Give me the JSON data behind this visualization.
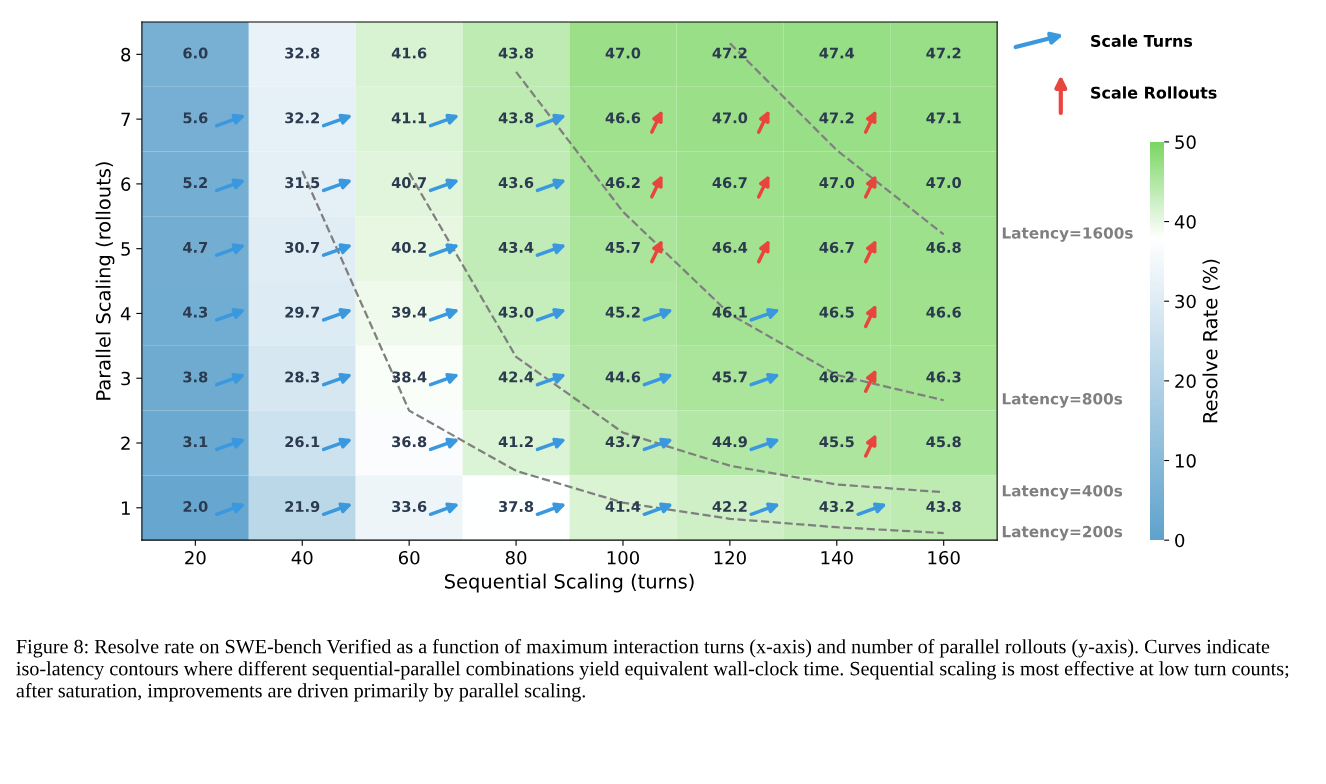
{
  "chart_data": {
    "type": "heatmap",
    "xlabel": "Sequential Scaling (turns)",
    "ylabel": "Parallel Scaling (rollouts)",
    "clabel": "Resolve Rate (%)",
    "categories": [
      "20",
      "40",
      "60",
      "80",
      "100",
      "120",
      "140",
      "160"
    ],
    "ylim": [
      0.5,
      8.5
    ],
    "yticks": [
      1,
      2,
      3,
      4,
      5,
      6,
      7,
      8
    ],
    "cells": [
      [
        6.0,
        32.8,
        41.6,
        43.8,
        47.0,
        47.2,
        47.4,
        47.2
      ],
      [
        5.6,
        32.2,
        41.1,
        43.8,
        46.6,
        47.0,
        47.2,
        47.1
      ],
      [
        5.2,
        31.5,
        40.7,
        43.6,
        46.2,
        46.7,
        47.0,
        47.0
      ],
      [
        4.7,
        30.7,
        40.2,
        43.4,
        45.7,
        46.4,
        46.7,
        46.8
      ],
      [
        4.3,
        29.7,
        39.4,
        43.0,
        45.2,
        46.1,
        46.5,
        46.6
      ],
      [
        3.8,
        28.3,
        38.4,
        42.4,
        44.6,
        45.7,
        46.2,
        46.3
      ],
      [
        3.1,
        26.1,
        36.8,
        41.2,
        43.7,
        44.9,
        45.5,
        45.8
      ],
      [
        2.0,
        21.9,
        33.6,
        37.8,
        41.4,
        42.2,
        43.2,
        43.8
      ]
    ],
    "cell_labels": [
      [
        "6.0",
        "32.8",
        "41.6",
        "43.8",
        "47.0",
        "47.2",
        "47.4",
        "47.2"
      ],
      [
        "5.6",
        "32.2",
        "41.1",
        "43.8",
        "46.6",
        "47.0",
        "47.2",
        "47.1"
      ],
      [
        "5.2",
        "31.5",
        "40.7",
        "43.6",
        "46.2",
        "46.7",
        "47.0",
        "47.0"
      ],
      [
        "4.7",
        "30.7",
        "40.2",
        "43.4",
        "45.7",
        "46.4",
        "46.7",
        "46.8"
      ],
      [
        "4.3",
        "29.7",
        "39.4",
        "43.0",
        "45.2",
        "46.1",
        "46.5",
        "46.6"
      ],
      [
        "3.8",
        "28.3",
        "38.4",
        "42.4",
        "44.6",
        "45.7",
        "46.2",
        "46.3"
      ],
      [
        "3.1",
        "26.1",
        "36.8",
        "41.2",
        "43.7",
        "44.9",
        "45.5",
        "45.8"
      ],
      [
        "2.0",
        "21.9",
        "33.6",
        "37.8",
        "41.4",
        "42.2",
        "43.2",
        "43.8"
      ]
    ],
    "clim": [
      0,
      50
    ],
    "cticks": [
      0,
      10,
      20,
      30,
      40,
      50
    ],
    "series": [
      {
        "name": "Scale Turns",
        "type": "scatter",
        "color": "#3a98de",
        "x": [
          "20",
          "40",
          "60",
          "80",
          "100",
          "120",
          "140",
          "20",
          "40",
          "60",
          "80",
          "100",
          "120",
          "20",
          "40",
          "60",
          "80",
          "100",
          "120",
          "20",
          "40",
          "60",
          "80",
          "100",
          "120",
          "20",
          "40",
          "60",
          "80",
          "20",
          "40",
          "60",
          "80",
          "20",
          "40",
          "60",
          "80"
        ],
        "values": [
          1,
          1,
          1,
          1,
          1,
          1,
          1,
          2,
          2,
          2,
          2,
          2,
          2,
          3,
          3,
          3,
          3,
          3,
          3,
          4,
          4,
          4,
          4,
          4,
          4,
          5,
          5,
          5,
          5,
          6,
          6,
          6,
          6,
          7,
          7,
          7,
          7
        ]
      },
      {
        "name": "Scale Rollouts",
        "type": "scatter",
        "color": "#e8453c",
        "x": [
          "140",
          "140",
          "140",
          "100",
          "120",
          "140",
          "100",
          "120",
          "140",
          "100",
          "120",
          "140"
        ],
        "values": [
          2,
          3,
          4,
          5,
          5,
          5,
          6,
          6,
          6,
          7,
          7,
          7
        ]
      },
      {
        "name": "Latency=200s",
        "type": "line",
        "color": "#7f7f7f",
        "line_style": "dashed",
        "values": [
          null,
          6.2,
          2.5,
          1.57,
          1.08,
          0.83,
          0.7,
          0.61
        ]
      },
      {
        "name": "Latency=400s",
        "type": "line",
        "color": "#7f7f7f",
        "line_style": "dashed",
        "values": [
          null,
          null,
          6.17,
          3.33,
          2.16,
          1.65,
          1.36,
          1.24
        ]
      },
      {
        "name": "Latency=800s",
        "type": "line",
        "color": "#7f7f7f",
        "line_style": "dashed",
        "values": [
          null,
          null,
          null,
          7.73,
          5.57,
          3.99,
          3.05,
          2.66
        ]
      },
      {
        "name": "Latency=1600s",
        "type": "line",
        "color": "#7f7f7f",
        "line_style": "dashed",
        "values": [
          null,
          null,
          null,
          null,
          null,
          8.17,
          6.52,
          5.22
        ]
      }
    ],
    "legend": "top right",
    "annotations": [
      "Figure 8: Resolve rate on SWE-bench Verified as a function of maximum interaction turns (x-axis) and number of parallel rollouts (y-axis). Curves indicate iso-latency contours where different sequential-parallel combinations yield equivalent wall-clock time. Sequential scaling is most effective at low turn counts; after saturation, improvements are driven primarily by parallel scaling."
    ]
  }
}
